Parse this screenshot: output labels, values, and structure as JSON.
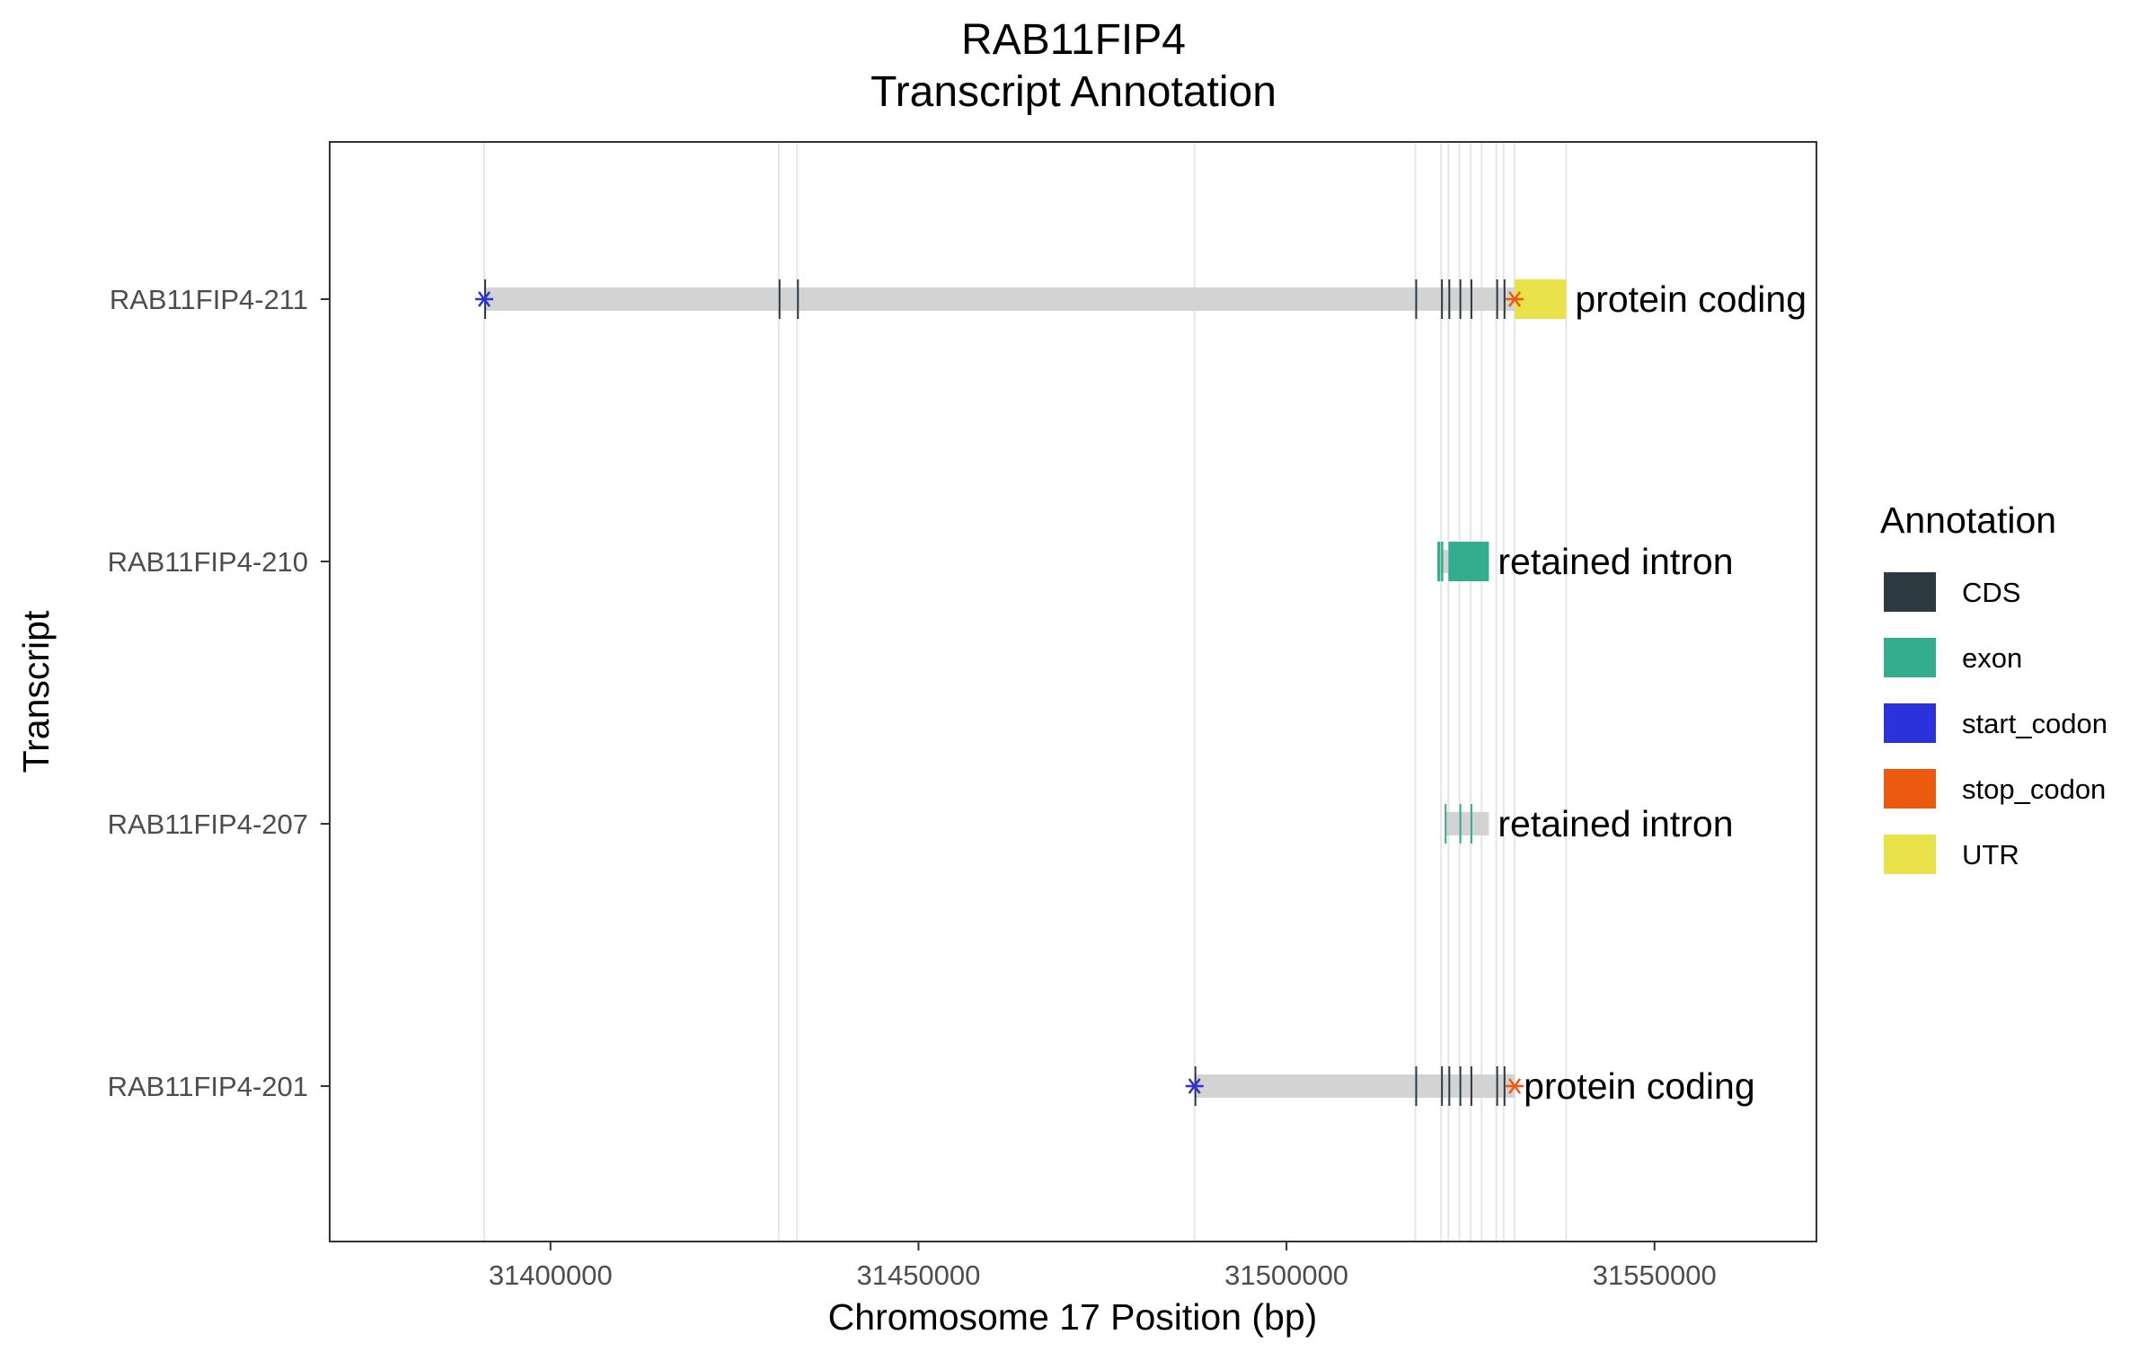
{
  "chart_data": {
    "type": "gene-transcript-annotation",
    "title": "RAB11FIP4",
    "subtitle": "Transcript Annotation",
    "xlabel": "Chromosome 17 Position (bp)",
    "ylabel": "Transcript",
    "xlim": [
      31370000,
      31572000
    ],
    "x_ticks": [
      31400000,
      31450000,
      31500000,
      31550000
    ],
    "x_tick_labels": [
      "31400000",
      "31450000",
      "31500000",
      "31550000"
    ],
    "grid": "vertical at feature boundaries",
    "legend": {
      "title": "Annotation",
      "position": "right",
      "items": [
        {
          "label": "CDS",
          "color": "#2e3a42"
        },
        {
          "label": "exon",
          "color": "#33ad8e"
        },
        {
          "label": "start_codon",
          "color": "#2b31db"
        },
        {
          "label": "stop_codon",
          "color": "#ec5a10"
        },
        {
          "label": "UTR",
          "color": "#eae24a"
        }
      ]
    },
    "feature_lines": [
      31391000,
      31431000,
      31433500,
      31487500,
      31517500,
      31521000,
      31522000,
      31523500,
      31525000,
      31526500,
      31528500,
      31529500,
      31531000,
      31538000
    ],
    "transcripts": [
      {
        "name": "RAB11FIP4-211",
        "biotype": "protein coding",
        "start": 31391000,
        "end": 31538000,
        "features": [
          {
            "type": "CDS",
            "start": 31391000,
            "end": 31391100
          },
          {
            "type": "CDS",
            "start": 31431000,
            "end": 31431100
          },
          {
            "type": "CDS",
            "start": 31433500,
            "end": 31433600
          },
          {
            "type": "CDS",
            "start": 31517500,
            "end": 31517600
          },
          {
            "type": "CDS",
            "start": 31521000,
            "end": 31521150
          },
          {
            "type": "CDS",
            "start": 31522000,
            "end": 31522150
          },
          {
            "type": "CDS",
            "start": 31523500,
            "end": 31523650
          },
          {
            "type": "CDS",
            "start": 31525000,
            "end": 31525150
          },
          {
            "type": "CDS",
            "start": 31528500,
            "end": 31528650
          },
          {
            "type": "CDS",
            "start": 31529500,
            "end": 31529650
          },
          {
            "type": "UTR",
            "start": 31531000,
            "end": 31538000
          },
          {
            "type": "start_codon",
            "at": 31391000
          },
          {
            "type": "stop_codon",
            "at": 31531000
          }
        ]
      },
      {
        "name": "RAB11FIP4-210",
        "biotype": "retained intron",
        "start": 31520500,
        "end": 31527500,
        "features": [
          {
            "type": "exon",
            "start": 31520500,
            "end": 31520900
          },
          {
            "type": "exon",
            "start": 31521000,
            "end": 31521300
          },
          {
            "type": "exon",
            "start": 31522000,
            "end": 31527500
          }
        ]
      },
      {
        "name": "RAB11FIP4-207",
        "biotype": "retained intron",
        "start": 31521500,
        "end": 31527500,
        "features": [
          {
            "type": "exon",
            "start": 31521500,
            "end": 31521700
          },
          {
            "type": "exon",
            "start": 31523500,
            "end": 31523700
          },
          {
            "type": "exon",
            "start": 31525000,
            "end": 31525200
          }
        ]
      },
      {
        "name": "RAB11FIP4-201",
        "biotype": "protein coding",
        "start": 31487500,
        "end": 31531000,
        "features": [
          {
            "type": "CDS",
            "start": 31487500,
            "end": 31487600
          },
          {
            "type": "CDS",
            "start": 31517500,
            "end": 31517600
          },
          {
            "type": "CDS",
            "start": 31521000,
            "end": 31521150
          },
          {
            "type": "CDS",
            "start": 31522000,
            "end": 31522150
          },
          {
            "type": "CDS",
            "start": 31523500,
            "end": 31523650
          },
          {
            "type": "CDS",
            "start": 31525000,
            "end": 31525150
          },
          {
            "type": "CDS",
            "start": 31528500,
            "end": 31528650
          },
          {
            "type": "CDS",
            "start": 31529500,
            "end": 31529650
          },
          {
            "type": "start_codon",
            "at": 31487500
          },
          {
            "type": "stop_codon",
            "at": 31531000
          }
        ]
      }
    ]
  }
}
